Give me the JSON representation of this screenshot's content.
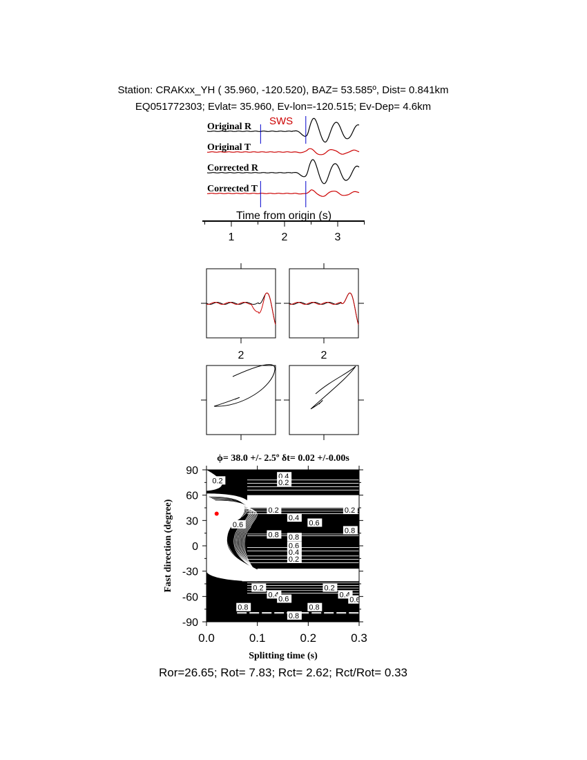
{
  "header": {
    "line1": "Station: CRAKxx_YH ( 35.960, -120.520), BAZ=   53.585º, Dist=    0.841km",
    "line2": "EQ051772303; Evlat=  35.960, Ev-lon=-120.515; Ev-Dep=  4.6km"
  },
  "chart_data": [
    {
      "type": "line",
      "panel": "waveforms",
      "traces": [
        {
          "name": "Original R",
          "color": "#000000"
        },
        {
          "name": "Original T",
          "color": "#cc0000"
        },
        {
          "name": "Corrected R",
          "color": "#000000"
        },
        {
          "name": "Corrected T",
          "color": "#cc0000"
        }
      ],
      "window_label": "SWS",
      "window_color": "#cc0000",
      "window_marker_color": "#0000cc",
      "window_times": [
        1.55,
        2.4
      ],
      "xlabel": "Time from origin (s)",
      "xticks": [
        "1",
        "2",
        "3"
      ],
      "xlim": [
        0.5,
        3.5
      ]
    },
    {
      "type": "line",
      "panel": "waveform-comparison",
      "left_tick_label": "2",
      "right_tick_label": "2"
    },
    {
      "type": "line",
      "panel": "particle-motion"
    },
    {
      "type": "heatmap",
      "panel": "grid-search-contour",
      "title": "ϕ= 38.0 +/- 2.5º δt= 0.02 +/-0.00s",
      "xlabel": "Splitting time (s)",
      "ylabel": "Fast direction (degree)",
      "xlim": [
        0.0,
        0.3
      ],
      "ylim": [
        -90,
        90
      ],
      "xticks": [
        "0.0",
        "0.1",
        "0.2",
        "0.3"
      ],
      "yticks": [
        "90",
        "60",
        "30",
        "0",
        "-30",
        "-60",
        "-90"
      ],
      "best": {
        "dt": 0.02,
        "phi": 38.0,
        "color": "#ff0000"
      },
      "contour_labels": [
        {
          "text": "0.2",
          "x": 0.01,
          "y": 75
        },
        {
          "text": "0.4",
          "x": 0.14,
          "y": 80
        },
        {
          "text": "0.2",
          "x": 0.14,
          "y": 73
        },
        {
          "text": "0.2",
          "x": 0.12,
          "y": 40
        },
        {
          "text": "0.4",
          "x": 0.16,
          "y": 31
        },
        {
          "text": "0.6",
          "x": 0.2,
          "y": 25
        },
        {
          "text": "0.2",
          "x": 0.27,
          "y": 40
        },
        {
          "text": "0.6",
          "x": 0.05,
          "y": 23
        },
        {
          "text": "0.8",
          "x": 0.12,
          "y": 11
        },
        {
          "text": "0.8",
          "x": 0.16,
          "y": 8
        },
        {
          "text": "0.8",
          "x": 0.27,
          "y": 16
        },
        {
          "text": "0.6",
          "x": 0.16,
          "y": -2
        },
        {
          "text": "0.4",
          "x": 0.16,
          "y": -10
        },
        {
          "text": "0.2",
          "x": 0.16,
          "y": -18
        },
        {
          "text": "0.2",
          "x": 0.09,
          "y": -52
        },
        {
          "text": "0.4",
          "x": 0.12,
          "y": -60
        },
        {
          "text": "0.6",
          "x": 0.14,
          "y": -65
        },
        {
          "text": "0.8",
          "x": 0.06,
          "y": -75
        },
        {
          "text": "0.8",
          "x": 0.2,
          "y": -75
        },
        {
          "text": "0.8",
          "x": 0.16,
          "y": -85
        },
        {
          "text": "0.2",
          "x": 0.23,
          "y": -52
        },
        {
          "text": "0.4",
          "x": 0.26,
          "y": -60
        },
        {
          "text": "0.6",
          "x": 0.28,
          "y": -66
        }
      ]
    }
  ],
  "footer": {
    "ratios": "Ror=26.65; Rot= 7.83; Rct= 2.62; Rct/Rot= 0.33"
  }
}
